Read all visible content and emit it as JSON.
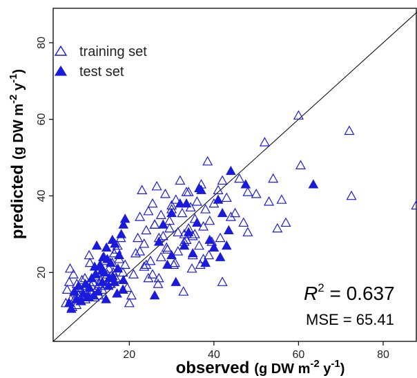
{
  "chart_data": {
    "type": "scatter",
    "xlabel": {
      "main": "observed",
      "unit_pre": "(g DW m",
      "sup1": "-2",
      "mid": " y",
      "sup2": "-1",
      "post": ")"
    },
    "ylabel": {
      "main": "predicted",
      "unit_pre": "(g DW m",
      "sup1": "-2",
      "mid": " y",
      "sup2": "-1",
      "post": ")"
    },
    "xlim": [
      2,
      88
    ],
    "ylim": [
      2,
      89
    ],
    "xticks": [
      20,
      40,
      60,
      80
    ],
    "yticks": [
      20,
      40,
      60,
      80
    ],
    "grid": false,
    "legend_position": "top-left",
    "reference_line": "1:1",
    "stats": {
      "r2_symbol": "R",
      "r2_exp": "2",
      "r2_text": " = 0.637",
      "mse_text": "MSE = 65.41"
    },
    "colors": {
      "series": "#1a1adb",
      "axis": "#000000",
      "reference": "#000000"
    },
    "series": [
      {
        "name": "training set",
        "marker": "triangle-open",
        "x": [
          5.0,
          5.3,
          5.8,
          6.2,
          6.5,
          6.8,
          7.0,
          7.3,
          7.6,
          7.9,
          8.2,
          8.5,
          8.8,
          9.0,
          9.3,
          9.6,
          10.0,
          10.3,
          10.7,
          11.0,
          11.4,
          11.8,
          12.0,
          12.4,
          12.8,
          13.2,
          13.6,
          14.0,
          14.4,
          14.8,
          15.2,
          15.6,
          16.0,
          16.4,
          16.8,
          17.2,
          17.6,
          18.0,
          18.5,
          19.0,
          19.5,
          20.0,
          20.5,
          21.0,
          21.5,
          6.0,
          8.0,
          9.5,
          11.0,
          12.5,
          14.0,
          15.5,
          17.0,
          18.5,
          7.5,
          10.5,
          13.0,
          16.2,
          22.0,
          22.5,
          23.0,
          23.5,
          24.0,
          24.5,
          25.0,
          25.5,
          26.0,
          26.5,
          27.0,
          27.5,
          28.0,
          28.5,
          29.0,
          29.5,
          30.0,
          30.5,
          31.0,
          31.5,
          32.0,
          32.5,
          33.0,
          33.5,
          34.0,
          34.5,
          35.0,
          35.5,
          36.0,
          36.5,
          37.0,
          37.5,
          38.0,
          38.5,
          39.0,
          40.0,
          41.0,
          42.0,
          43.0,
          44.0,
          45.0,
          46.0,
          47.0,
          48.0,
          23.5,
          25.5,
          27.5,
          29.5,
          31.5,
          33.5,
          35.5,
          37.5,
          39.5,
          41.5,
          24.5,
          26.8,
          28.8,
          30.8,
          32.8,
          34.8,
          36.8,
          38.8,
          26.0,
          30.0,
          34.0,
          22.5,
          24.0,
          27.0,
          33.0,
          35.0,
          42.0,
          48.0,
          50.0,
          52.0,
          53.0,
          54.0,
          55.0,
          56.0,
          57.0,
          60.0,
          60.5,
          72.0,
          72.5,
          87.8
        ],
        "y": [
          12.0,
          15.5,
          17.5,
          13.0,
          11.0,
          19.5,
          15.0,
          13.5,
          17.0,
          14.5,
          16.0,
          12.5,
          18.0,
          14.0,
          15.5,
          13.0,
          16.5,
          14.5,
          22.5,
          15.0,
          17.5,
          13.5,
          19.0,
          16.0,
          14.0,
          18.0,
          15.5,
          24.0,
          16.5,
          19.5,
          21.0,
          17.0,
          22.5,
          25.0,
          18.5,
          27.0,
          23.5,
          29.0,
          20.0,
          22.0,
          16.0,
          12.0,
          14.0,
          19.5,
          25.0,
          21.0,
          14.0,
          18.5,
          16.5,
          20.5,
          23.0,
          18.0,
          26.0,
          15.5,
          11.5,
          24.5,
          17.0,
          20.0,
          29.0,
          34.5,
          41.5,
          27.5,
          31.0,
          36.0,
          23.0,
          38.0,
          32.5,
          42.5,
          18.5,
          35.0,
          29.5,
          40.5,
          26.0,
          33.5,
          37.5,
          22.0,
          39.0,
          30.5,
          44.0,
          35.5,
          28.0,
          41.0,
          31.5,
          37.0,
          24.5,
          34.0,
          38.5,
          27.0,
          43.0,
          32.0,
          36.5,
          49.0,
          33.5,
          38.0,
          41.5,
          17.5,
          39.5,
          34.5,
          35.5,
          44.5,
          33.0,
          30.5,
          21.5,
          19.5,
          24.0,
          31.5,
          25.5,
          28.5,
          30.0,
          23.5,
          28.0,
          29.0,
          18.5,
          17.0,
          26.5,
          22.5,
          15.0,
          21.0,
          22.0,
          24.5,
          32.5,
          36.5,
          41.0,
          25.5,
          22.0,
          29.0,
          30.0,
          29.5,
          44.0,
          41.0,
          40.5,
          54.0,
          38.5,
          44.5,
          31.5,
          39.0,
          33.0,
          61.0,
          48.0,
          57.0,
          40.0,
          37.5
        ]
      },
      {
        "name": "test set",
        "marker": "triangle-filled",
        "x": [
          5.8,
          6.3,
          7.0,
          7.5,
          8.0,
          8.6,
          9.1,
          9.6,
          10.1,
          10.6,
          11.1,
          11.6,
          12.1,
          12.6,
          13.1,
          13.6,
          14.1,
          14.6,
          15.1,
          15.6,
          16.1,
          16.6,
          17.1,
          17.6,
          18.1,
          18.6,
          19.0,
          12.3,
          13.5,
          14.8,
          16.0,
          17.3,
          18.6,
          14.5,
          16.5,
          18.5,
          10.5,
          11.8,
          13.8,
          15.2,
          26.0,
          27.0,
          28.0,
          29.0,
          30.0,
          31.0,
          32.0,
          33.0,
          34.0,
          35.0,
          36.0,
          37.0,
          38.0,
          39.0,
          40.0,
          41.0,
          42.0,
          43.0,
          44.0,
          47.5,
          63.5,
          33.5,
          36.5,
          30.0,
          41.5,
          43.5
        ],
        "y": [
          12.0,
          10.5,
          15.0,
          13.0,
          16.5,
          12.5,
          14.5,
          17.0,
          13.5,
          16.0,
          18.5,
          14.0,
          19.5,
          15.0,
          22.0,
          17.5,
          20.0,
          26.5,
          16.5,
          22.5,
          19.0,
          27.5,
          14.5,
          24.5,
          30.0,
          18.0,
          34.0,
          27.0,
          20.5,
          23.5,
          28.5,
          21.0,
          32.5,
          13.0,
          17.5,
          15.5,
          13.5,
          21.5,
          24.0,
          18.5,
          14.0,
          28.0,
          32.5,
          22.0,
          35.5,
          17.5,
          38.0,
          27.0,
          30.5,
          25.0,
          33.0,
          41.5,
          22.5,
          28.5,
          26.5,
          39.0,
          35.5,
          27.0,
          46.5,
          43.0,
          43.0,
          38.0,
          42.0,
          24.5,
          24.0,
          31.0
        ]
      }
    ]
  }
}
